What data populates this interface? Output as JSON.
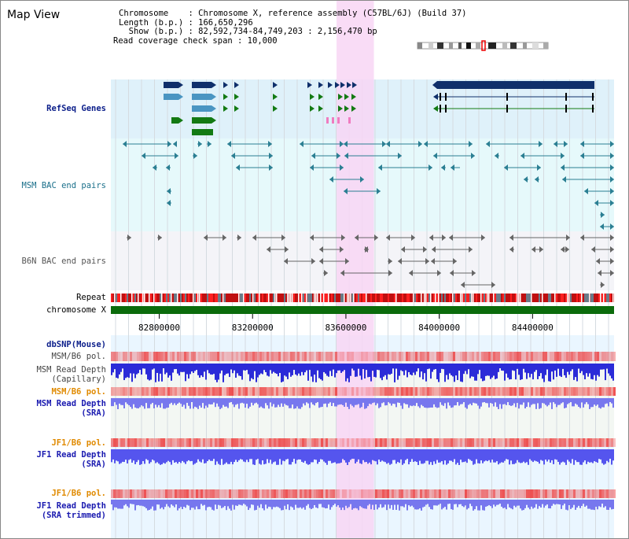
{
  "view_title": "Map View",
  "info": {
    "chromosome_line": "Chromosome    : Chromosome X, reference assembly (C57BL/6J) (Build 37)",
    "length_line": "Length (b.p.) : 166,650,296",
    "show_line": "  Show (b.p.) : 82,592,734-84,749,203 : 2,156,470 bp",
    "coverage_line": "Read coverage check span : 10,000"
  },
  "tracks": {
    "refseq": "RefSeq Genes",
    "msm_bac": "MSM BAC end pairs",
    "b6n_bac": "B6N BAC end pairs",
    "repeat": "Repeat",
    "chromosome": "chromosome X",
    "dbsnp": "dbSNP(Mouse)",
    "msm_pol_1": "MSM/B6 pol.",
    "msm_depth_cap_1": "MSM Read Depth",
    "msm_depth_cap_2": "(Capillary)",
    "msm_pol_2": "MSM/B6 pol.",
    "msm_depth_sra_1": "MSM Read Depth",
    "msm_depth_sra_2": "(SRA)",
    "jf1_pol_1": "JF1/B6 pol.",
    "jf1_depth_sra_1": "JF1 Read Depth",
    "jf1_depth_sra_2": "(SRA)",
    "jf1_pol_2": "JF1/B6 pol.",
    "jf1_depth_trim_1": "JF1 Read Depth",
    "jf1_depth_trim_2": "(SRA trimmed)"
  },
  "axis": {
    "ticks": [
      "82800000",
      "83200000",
      "83600000",
      "84000000",
      "84400000"
    ],
    "tick_values": [
      82800000,
      83200000,
      83600000,
      84000000,
      84400000
    ],
    "start": 82592734,
    "end": 84749203,
    "highlight_start": 83560000,
    "highlight_end": 83720000
  },
  "colors": {
    "refseq_bg": "#dff1fa",
    "msm_bac_bg": "#e6f9fb",
    "b6n_bac_bg": "#f4f4f8",
    "highlight": "#f8d6f4",
    "chromosome_bar": "#0b6b0b",
    "gene_navy": "#0f2f6b",
    "gene_light": "#4a95c2",
    "gene_green": "#137a13",
    "bac_teal": "#2b7f93",
    "bac_gray": "#666666",
    "depth_blue": "#2b2bd8",
    "depth_lightblue": "#7777ee",
    "pol_red": "#ee3333"
  }
}
